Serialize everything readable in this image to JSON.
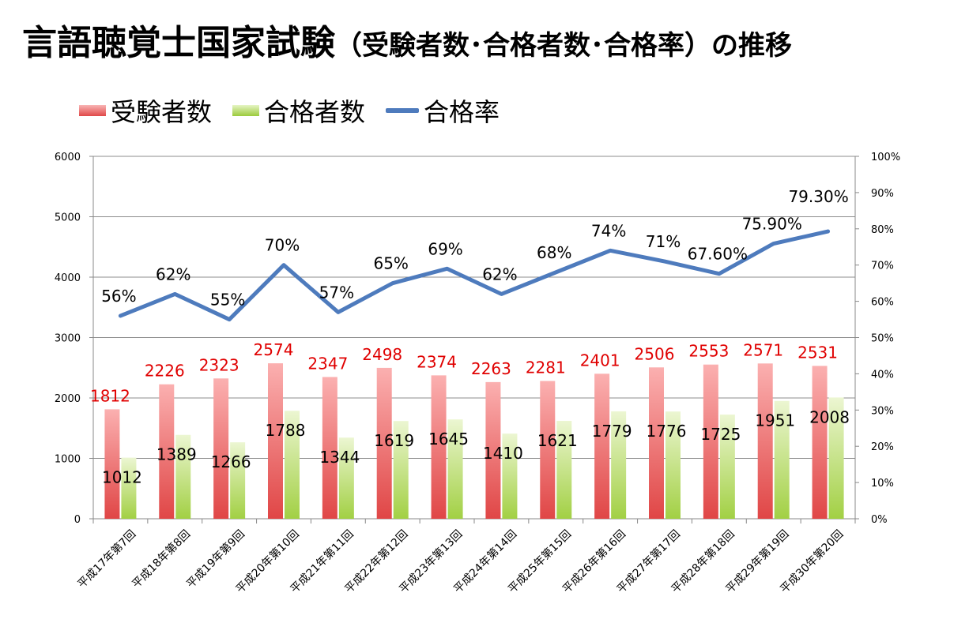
{
  "title": {
    "main": "言語聴覚士国家試験",
    "sub": "（受験者数･合格者数･合格率）の推移"
  },
  "colors": {
    "applicants": "#f08f8f",
    "passers": "#c6e484",
    "rate": "#4e7bbd",
    "applicantLabel": "#e00000"
  },
  "chart_data": {
    "type": "bar+line",
    "categories": [
      "平成17年第7回",
      "平成18年第8回",
      "平成19年第9回",
      "平成20年第10回",
      "平成21年第11回",
      "平成22年第12回",
      "平成23年第13回",
      "平成24年第14回",
      "平成25年第15回",
      "平成26年第16回",
      "平成27年第17回",
      "平成28年第18回",
      "平成29年第19回",
      "平成30年第20回"
    ],
    "series": [
      {
        "name": "受験者数",
        "type": "bar",
        "axis": "left",
        "values": [
          1812,
          2226,
          2323,
          2574,
          2347,
          2498,
          2374,
          2263,
          2281,
          2401,
          2506,
          2553,
          2571,
          2531
        ],
        "labels": [
          "1812",
          "2226",
          "2323",
          "2574",
          "2347",
          "2498",
          "2374",
          "2263",
          "2281",
          "2401",
          "2506",
          "2553",
          "2571",
          "2531"
        ]
      },
      {
        "name": "合格者数",
        "type": "bar",
        "axis": "left",
        "values": [
          1012,
          1389,
          1266,
          1788,
          1344,
          1619,
          1645,
          1410,
          1621,
          1779,
          1776,
          1725,
          1951,
          2008
        ],
        "labels": [
          "1012",
          "1389",
          "1266",
          "1788",
          "1344",
          "1619",
          "1645",
          "1410",
          "1621",
          "1779",
          "1776",
          "1725",
          "1951",
          "2008"
        ]
      },
      {
        "name": "合格率",
        "type": "line",
        "axis": "right",
        "values": [
          56,
          62,
          55,
          70,
          57,
          65,
          69,
          62,
          68,
          74,
          71,
          67.6,
          75.9,
          79.3
        ],
        "labels": [
          "56%",
          "62%",
          "55%",
          "70%",
          "57%",
          "65%",
          "69%",
          "62%",
          "68%",
          "74%",
          "71%",
          "67.60%",
          "75.90%",
          "79.30%"
        ]
      }
    ],
    "yAxisLeft": {
      "min": 0,
      "max": 6000,
      "ticks": [
        "0",
        "1000",
        "2000",
        "3000",
        "4000",
        "5000",
        "6000"
      ]
    },
    "yAxisRight": {
      "min": 0,
      "max": 100,
      "ticks": [
        "0%",
        "10%",
        "20%",
        "30%",
        "40%",
        "50%",
        "60%",
        "70%",
        "80%",
        "90%",
        "100%"
      ]
    },
    "legend": [
      "受験者数",
      "合格者数",
      "合格率"
    ],
    "grid": true
  }
}
